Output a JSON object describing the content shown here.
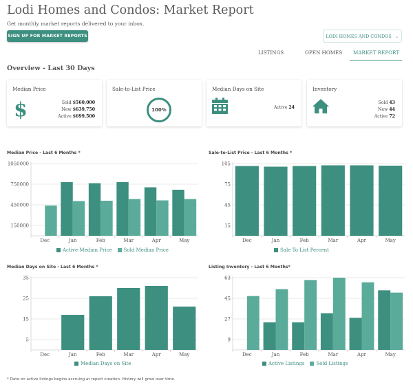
{
  "page": {
    "title": "Lodi Homes and Condos: Market Report",
    "subtitle": "Get monthly market reports delivered to your inbox.",
    "signup_label": "SIGN UP FOR MARKET REPORTS",
    "area_dropdown": "LODI HOMES AND CONDOS",
    "tabs": [
      "LISTINGS",
      "OPEN HOMES",
      "MARKET REPORT"
    ],
    "active_tab": "MARKET REPORT",
    "overview_heading": "Overview - Last 30 Days",
    "footnote": "* Data on active listings begins accruing at report creation. History will grow over time."
  },
  "colors": {
    "accent": "#3d8f7f",
    "accent_light": "#5bab9b",
    "dark_bar": "#3d8f7f"
  },
  "cards": {
    "median_price": {
      "title": "Median Price",
      "icon": "dollar-icon",
      "rows": [
        {
          "label": "Sold",
          "value": "$560,000"
        },
        {
          "label": "New",
          "value": "$639,750"
        },
        {
          "label": "Active",
          "value": "$699,500"
        }
      ]
    },
    "sale_to_list": {
      "title": "Sale-to-List Price",
      "icon": "ring-gauge",
      "value": "100%"
    },
    "median_days": {
      "title": "Median Days on Site",
      "icon": "calendar-icon",
      "rows": [
        {
          "label": "Active",
          "value": "24"
        }
      ]
    },
    "inventory": {
      "title": "Inventory",
      "icon": "home-icon",
      "rows": [
        {
          "label": "Sold",
          "value": "43"
        },
        {
          "label": "New",
          "value": "44"
        },
        {
          "label": "Active",
          "value": "72"
        }
      ]
    }
  },
  "chart_data": [
    {
      "type": "bar",
      "title": "Median Price - Last 6 Months *",
      "categories": [
        "Dec",
        "Jan",
        "Feb",
        "Mar",
        "Apr",
        "May"
      ],
      "yticks": [
        "1050000",
        "750000",
        "450000",
        "150000"
      ],
      "ytick_values": [
        1050000,
        750000,
        450000,
        150000
      ],
      "ylim": [
        0,
        1050000
      ],
      "series": [
        {
          "name": "Active Median Price",
          "values": [
            null,
            780000,
            765000,
            780000,
            705000,
            670000
          ],
          "color": "#3d8f7f"
        },
        {
          "name": "Sold Median Price",
          "values": [
            440000,
            505000,
            510000,
            535000,
            515000,
            535000
          ],
          "color": "#5bab9b"
        }
      ]
    },
    {
      "type": "bar",
      "title": "Sale-to-List Price - Last 6 Months *",
      "categories": [
        "Dec",
        "Jan",
        "Feb",
        "Mar",
        "Apr",
        "May"
      ],
      "yticks": [
        "105",
        "75",
        "45",
        "15"
      ],
      "ytick_values": [
        105,
        75,
        45,
        15
      ],
      "ylim": [
        0,
        105
      ],
      "series": [
        {
          "name": "Sale To List Percent",
          "values": [
            101.5,
            100.5,
            101.5,
            102.5,
            102.5,
            102
          ],
          "color": "#3d8f7f"
        }
      ]
    },
    {
      "type": "bar",
      "title": "Median Days on Site - Last 6 Months *",
      "categories": [
        "Dec",
        "Jan",
        "Feb",
        "Mar",
        "Apr",
        "May"
      ],
      "yticks": [
        "35",
        "25",
        "15",
        "5"
      ],
      "ytick_values": [
        35,
        25,
        15,
        5
      ],
      "ylim": [
        0,
        35
      ],
      "series": [
        {
          "name": "Median Days on Site",
          "values": [
            0,
            17,
            26,
            30,
            31,
            21
          ],
          "color": "#3d8f7f"
        }
      ]
    },
    {
      "type": "bar",
      "title": "Listing Inventory - Last 6 Months*",
      "categories": [
        "Dec",
        "Jan",
        "Feb",
        "Mar",
        "Apr",
        "May"
      ],
      "yticks": [
        "63",
        "45",
        "27",
        "9"
      ],
      "ytick_values": [
        63,
        45,
        27,
        9
      ],
      "ylim": [
        0,
        63
      ],
      "series": [
        {
          "name": "Active Listings",
          "values": [
            0,
            24,
            24,
            32,
            28,
            52
          ],
          "color": "#3d8f7f"
        },
        {
          "name": "Sold Listings",
          "values": [
            47,
            53,
            61,
            63,
            59,
            50
          ],
          "color": "#5bab9b"
        }
      ]
    }
  ]
}
